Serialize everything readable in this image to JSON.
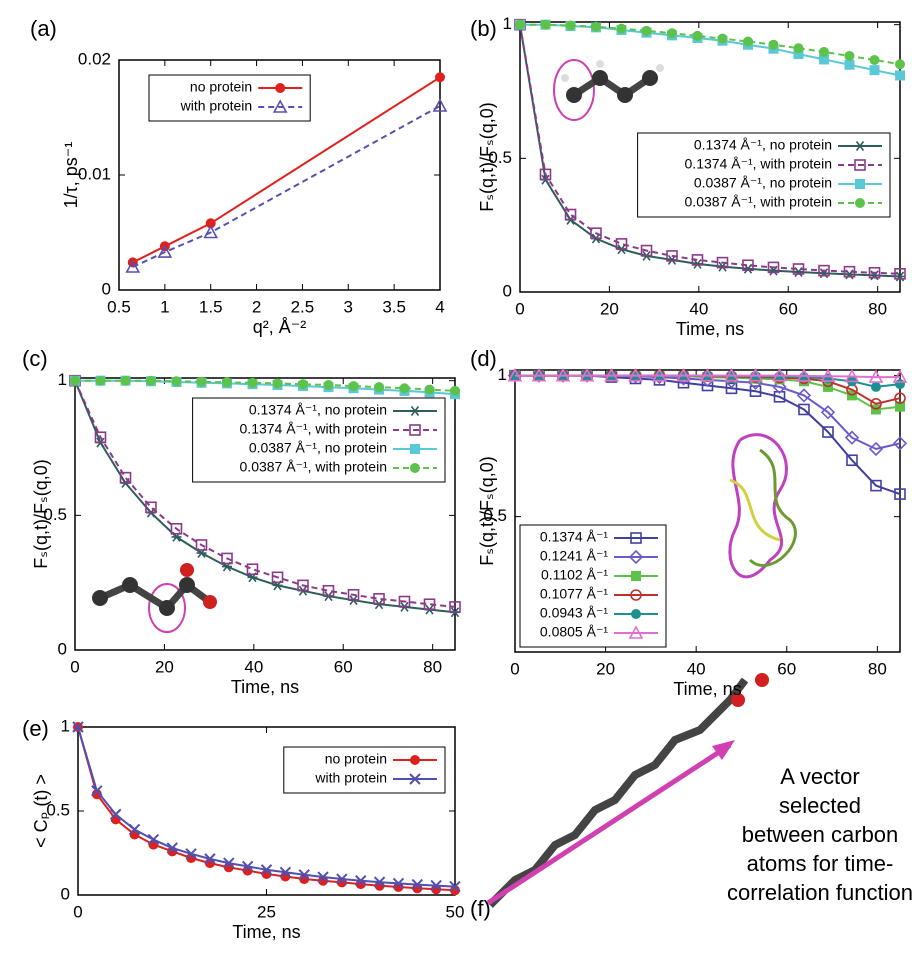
{
  "chart_data": [
    {
      "type": "line",
      "panel": "(a)",
      "xlabel": "q², Å⁻²",
      "ylabel": "1/τ, ps⁻¹",
      "x": [
        0.65,
        1,
        1.5,
        4
      ],
      "xlim": [
        0.5,
        4
      ],
      "xticks": [
        0.5,
        1,
        1.5,
        2,
        2.5,
        3,
        3.5,
        4
      ],
      "ylim": [
        0,
        0.02
      ],
      "yticks": [
        0,
        0.01,
        0.02
      ],
      "legend": "top-left",
      "series": [
        {
          "name": "no protein",
          "color": "#e0201c",
          "marker": "circle-filled",
          "dash": false,
          "values": [
            0.0024,
            0.0038,
            0.0058,
            0.0185
          ]
        },
        {
          "name": "with protein",
          "color": "#5a4fb0",
          "marker": "triangle-open",
          "dash": true,
          "values": [
            0.002,
            0.0033,
            0.005,
            0.016
          ]
        }
      ]
    },
    {
      "type": "line",
      "panel": "(b)",
      "xlabel": "Time, ns",
      "ylabel": "Fₛ(q,t)/Fₛ(q,0)",
      "x": [
        0,
        5.7,
        11.3,
        17,
        22.7,
        28.3,
        34,
        39.7,
        45.3,
        51,
        56.7,
        62.3,
        68,
        73.7,
        79.3,
        85
      ],
      "xlim": [
        0,
        85
      ],
      "xticks": [
        0,
        20,
        40,
        60,
        80
      ],
      "ylim": [
        0,
        1.01
      ],
      "yticks": [
        0,
        0.5,
        1
      ],
      "legend": "center-right",
      "series": [
        {
          "name": "0.1374 Å⁻¹, no protein",
          "color": "#2e5e5a",
          "marker": "asterisk",
          "dash": false,
          "values": [
            1,
            0.42,
            0.27,
            0.2,
            0.16,
            0.135,
            0.12,
            0.105,
            0.095,
            0.087,
            0.08,
            0.075,
            0.07,
            0.066,
            0.062,
            0.058
          ]
        },
        {
          "name": "0.1374 Å⁻¹, with protein",
          "color": "#8b3a8b",
          "marker": "square-open",
          "dash": true,
          "values": [
            1,
            0.44,
            0.29,
            0.22,
            0.18,
            0.155,
            0.135,
            0.12,
            0.11,
            0.1,
            0.092,
            0.086,
            0.08,
            0.076,
            0.072,
            0.068
          ]
        },
        {
          "name": "0.0387 Å⁻¹, no protein",
          "color": "#5bc8d8",
          "marker": "square-filled",
          "dash": false,
          "values": [
            1,
            1,
            0.995,
            0.99,
            0.98,
            0.97,
            0.96,
            0.95,
            0.94,
            0.925,
            0.91,
            0.89,
            0.87,
            0.85,
            0.83,
            0.81
          ]
        },
        {
          "name": "0.0387 Å⁻¹, with protein",
          "color": "#5dc24a",
          "marker": "circle-filled",
          "dash": true,
          "values": [
            1,
            1,
            0.997,
            0.992,
            0.985,
            0.977,
            0.968,
            0.958,
            0.948,
            0.937,
            0.925,
            0.912,
            0.898,
            0.883,
            0.868,
            0.852
          ]
        }
      ]
    },
    {
      "type": "line",
      "panel": "(c)",
      "xlabel": "Time, ns",
      "ylabel": "Fₛ(q,t)/Fₛ(q,0)",
      "x": [
        0,
        5.7,
        11.3,
        17,
        22.7,
        28.3,
        34,
        39.7,
        45.3,
        51,
        56.7,
        62.3,
        68,
        73.7,
        79.3,
        85
      ],
      "xlim": [
        0,
        85
      ],
      "xticks": [
        0,
        20,
        40,
        60,
        80
      ],
      "ylim": [
        0,
        1.01
      ],
      "yticks": [
        0,
        0.5,
        1
      ],
      "legend": "top-right",
      "series": [
        {
          "name": "0.1374 Å⁻¹, no protein",
          "color": "#2e5e5a",
          "marker": "asterisk",
          "dash": false,
          "values": [
            1,
            0.77,
            0.62,
            0.51,
            0.42,
            0.36,
            0.31,
            0.27,
            0.24,
            0.22,
            0.2,
            0.185,
            0.17,
            0.16,
            0.15,
            0.14
          ]
        },
        {
          "name": "0.1374 Å⁻¹, with protein",
          "color": "#8b3a8b",
          "marker": "square-open",
          "dash": true,
          "values": [
            1,
            0.79,
            0.64,
            0.53,
            0.45,
            0.39,
            0.34,
            0.3,
            0.27,
            0.24,
            0.22,
            0.205,
            0.19,
            0.18,
            0.17,
            0.16
          ]
        },
        {
          "name": "0.0387 Å⁻¹, no protein",
          "color": "#5bc8d8",
          "marker": "square-filled",
          "dash": false,
          "values": [
            1,
            1,
            1,
            0.998,
            0.995,
            0.992,
            0.99,
            0.987,
            0.984,
            0.98,
            0.976,
            0.972,
            0.967,
            0.962,
            0.957,
            0.95
          ]
        },
        {
          "name": "0.0387 Å⁻¹, with protein",
          "color": "#5dc24a",
          "marker": "circle-filled",
          "dash": true,
          "values": [
            1,
            1,
            1,
            1,
            0.998,
            0.996,
            0.994,
            0.992,
            0.99,
            0.987,
            0.984,
            0.98,
            0.976,
            0.972,
            0.967,
            0.962
          ]
        }
      ]
    },
    {
      "type": "line",
      "panel": "(d)",
      "xlabel": "Time, ns",
      "ylabel": "Fₛ(q,t)/Fₛ(q,0)",
      "x": [
        0,
        5.3,
        10.6,
        15.9,
        21.3,
        26.6,
        31.9,
        37.2,
        42.5,
        47.8,
        53.1,
        58.4,
        63.8,
        69.1,
        74.4,
        79.7,
        85
      ],
      "xlim": [
        0,
        85
      ],
      "xticks": [
        0,
        20,
        40,
        60,
        80
      ],
      "ylim": [
        0.02,
        1.02
      ],
      "yticks": [
        0.5,
        1
      ],
      "legend": "bottom-left",
      "series": [
        {
          "name": "0.1374 Å⁻¹",
          "color": "#4040a0",
          "marker": "square-open",
          "dash": false,
          "values": [
            1,
            1,
            1,
            1,
            0.995,
            0.99,
            0.985,
            0.975,
            0.965,
            0.955,
            0.945,
            0.925,
            0.88,
            0.8,
            0.7,
            0.61,
            0.58
          ]
        },
        {
          "name": "0.1241 Å⁻¹",
          "color": "#6a5acd",
          "marker": "diamond-open",
          "dash": false,
          "values": [
            1,
            1,
            1,
            1,
            1,
            0.998,
            0.995,
            0.99,
            0.985,
            0.98,
            0.975,
            0.96,
            0.93,
            0.87,
            0.78,
            0.74,
            0.76
          ]
        },
        {
          "name": "0.1102 Å⁻¹",
          "color": "#5dc24a",
          "marker": "square-filled",
          "dash": false,
          "values": [
            1,
            1,
            1,
            1,
            1,
            1,
            1,
            0.998,
            0.995,
            0.993,
            0.99,
            0.987,
            0.98,
            0.96,
            0.93,
            0.88,
            0.89
          ]
        },
        {
          "name": "0.1077 Å⁻¹",
          "color": "#c0302a",
          "marker": "circle-open",
          "dash": false,
          "values": [
            1,
            1,
            1,
            1,
            1,
            1,
            1,
            1,
            0.998,
            0.997,
            0.995,
            0.993,
            0.99,
            0.98,
            0.95,
            0.9,
            0.92
          ]
        },
        {
          "name": "0.0943 Å⁻¹",
          "color": "#1a9090",
          "marker": "circle-filled",
          "dash": false,
          "values": [
            1,
            1,
            1,
            1,
            1,
            1,
            1,
            1,
            1,
            0.999,
            0.998,
            0.997,
            0.995,
            0.99,
            0.98,
            0.96,
            0.97
          ]
        },
        {
          "name": "0.0805 Å⁻¹",
          "color": "#e070d0",
          "marker": "triangle-open",
          "dash": false,
          "values": [
            1,
            1,
            1,
            1,
            1,
            1,
            1,
            1,
            1,
            1,
            1,
            1,
            0.999,
            0.998,
            0.997,
            0.995,
            0.995
          ]
        }
      ]
    },
    {
      "type": "line",
      "panel": "(e)",
      "xlabel": "Time, ns",
      "ylabel": "< Cₚ (t) >",
      "x": [
        0,
        2.5,
        5,
        7.5,
        10,
        12.5,
        15,
        17.5,
        20,
        22.5,
        25,
        27.5,
        30,
        32.5,
        35,
        37.5,
        40,
        42.5,
        45,
        47.5,
        50
      ],
      "xlim": [
        0,
        50
      ],
      "xticks": [
        0,
        25,
        50
      ],
      "ylim": [
        0,
        1
      ],
      "yticks": [
        0,
        0.5,
        1
      ],
      "legend": "top-right",
      "series": [
        {
          "name": "no protein",
          "color": "#e0201c",
          "marker": "circle-filled",
          "dash": false,
          "values": [
            1,
            0.6,
            0.45,
            0.36,
            0.3,
            0.26,
            0.22,
            0.19,
            0.165,
            0.145,
            0.125,
            0.11,
            0.095,
            0.085,
            0.075,
            0.065,
            0.055,
            0.048,
            0.04,
            0.034,
            0.028
          ]
        },
        {
          "name": "with protein",
          "color": "#5050b0",
          "marker": "x",
          "dash": false,
          "values": [
            1,
            0.62,
            0.48,
            0.39,
            0.33,
            0.28,
            0.245,
            0.215,
            0.19,
            0.17,
            0.15,
            0.135,
            0.12,
            0.107,
            0.095,
            0.085,
            0.077,
            0.069,
            0.062,
            0.056,
            0.05
          ]
        }
      ]
    }
  ],
  "illustration": {
    "panel": "(f)",
    "caption": [
      "A vector",
      "selected",
      "between carbon",
      "atoms for time-",
      "correlation function"
    ]
  }
}
